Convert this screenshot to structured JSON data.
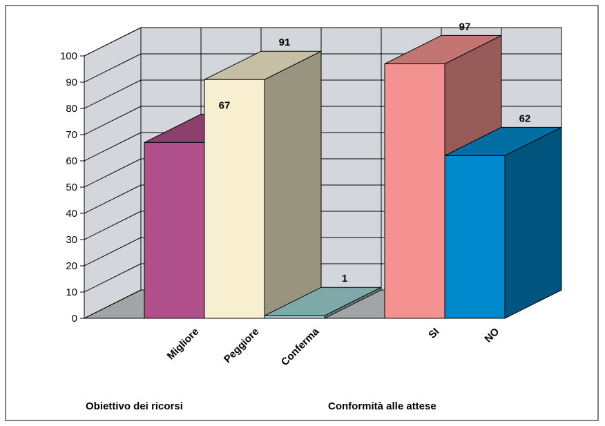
{
  "chart_data": {
    "type": "bar",
    "style": "3d",
    "ylim": [
      0,
      100
    ],
    "yticks": [
      0,
      10,
      20,
      30,
      40,
      50,
      60,
      70,
      80,
      90,
      100
    ],
    "grid": true,
    "groups": [
      "Obiettivo dei ricorsi",
      "Conformità alle attese"
    ],
    "bars": [
      {
        "label": "Migliore",
        "value": 67,
        "group": "Obiettivo dei ricorsi",
        "color": "#B0508A"
      },
      {
        "label": "Peggiore",
        "value": 91,
        "group": "Obiettivo dei ricorsi",
        "color": "#F7EFCF"
      },
      {
        "label": "Conferma",
        "value": 1,
        "group": "Obiettivo dei ricorsi",
        "color": "#9FD3D3"
      },
      {
        "label": "SI",
        "value": 97,
        "group": "Conformità alle attese",
        "color": "#F39290"
      },
      {
        "label": "NO",
        "value": 62,
        "group": "Conformità alle attese",
        "color": "#0088CC"
      }
    ],
    "colors": {
      "wall": "#D3D7DB",
      "floor": "#A2A5A6",
      "grid": "#000000"
    }
  }
}
